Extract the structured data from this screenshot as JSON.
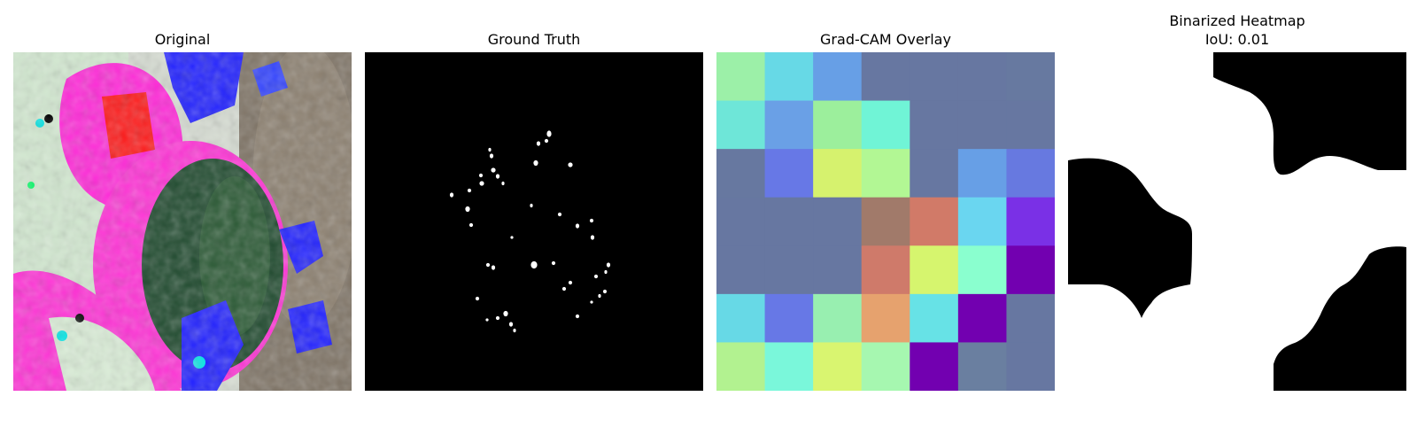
{
  "figure": {
    "panels": [
      {
        "title": "Original"
      },
      {
        "title": "Ground Truth"
      },
      {
        "title": "Grad-CAM Overlay"
      },
      {
        "title": "Binarized Heatmap",
        "subtitle": "IoU: 0.01"
      }
    ]
  },
  "gradcam": {
    "grid_size": 7,
    "cells": [
      [
        "#9cf0a8",
        "#67d9e6",
        "#679fe6",
        "#6777a1",
        "#6777a1",
        "#6777a1",
        "#6779a0"
      ],
      [
        "#6ee6d8",
        "#6aa0e6",
        "#9cef9c",
        "#70f4d6",
        "#6777a1",
        "#6777a1",
        "#6777a1"
      ],
      [
        "#6778a0",
        "#6778e6",
        "#d6f26e",
        "#b2f794",
        "#6777a1",
        "#679fe6",
        "#6779e0"
      ],
      [
        "#6777a1",
        "#6777a1",
        "#6777a1",
        "#a17a6a",
        "#d17a68",
        "#6ad6f0",
        "#7a30e6"
      ],
      [
        "#6777a1",
        "#6777a1",
        "#6777a1",
        "#cf7a6a",
        "#d6f56e",
        "#8affcf",
        "#7200b0"
      ],
      [
        "#67d9e6",
        "#6778e6",
        "#98efb0",
        "#e6a26e",
        "#67e2e6",
        "#7200b0",
        "#6777a1"
      ],
      [
        "#b2f290",
        "#7af7da",
        "#d9f570",
        "#a6f7b0",
        "#7200b0",
        "#6a7fa0",
        "#6777a1"
      ]
    ]
  },
  "ground_truth": {
    "background": "#000000",
    "foreground": "#ffffff"
  },
  "colors": {
    "binary_on": "#ffffff",
    "binary_off": "#000000"
  }
}
